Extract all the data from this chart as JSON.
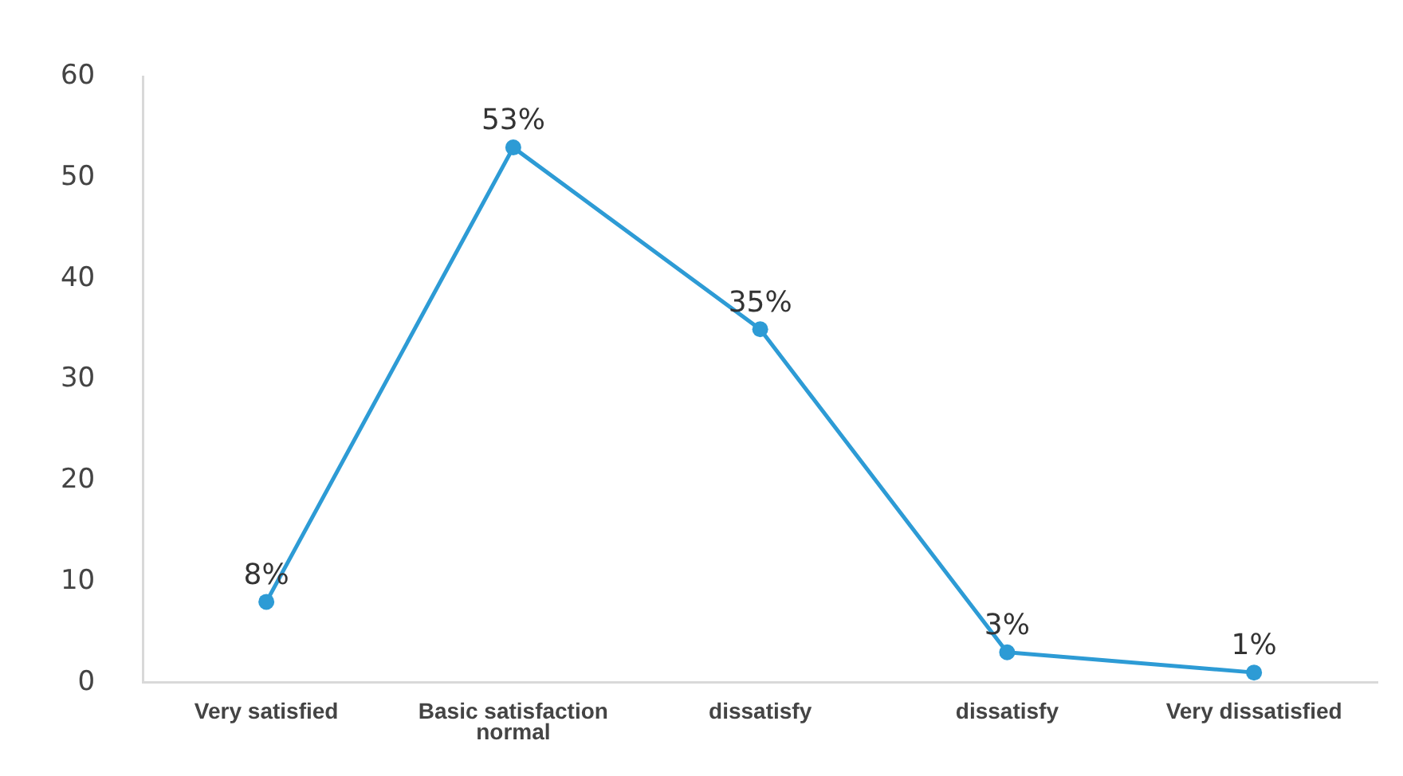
{
  "chart_data": {
    "type": "line",
    "categories": [
      "Very satisfied",
      "Basic satisfaction\nnormal",
      "dissatisfy",
      "dissatisfy",
      "Very dissatisfied"
    ],
    "series": [
      {
        "color": "#2d9bd5",
        "values": [
          8,
          53,
          35,
          3,
          1
        ],
        "value_labels": [
          "8%",
          "53%",
          "35%",
          "3%",
          "1%"
        ]
      }
    ],
    "ylim": [
      0,
      60
    ],
    "yticks": [
      0,
      10,
      20,
      30,
      40,
      50,
      60
    ],
    "grid": false,
    "legend": false,
    "marker": "circle",
    "line_style": "solid"
  }
}
